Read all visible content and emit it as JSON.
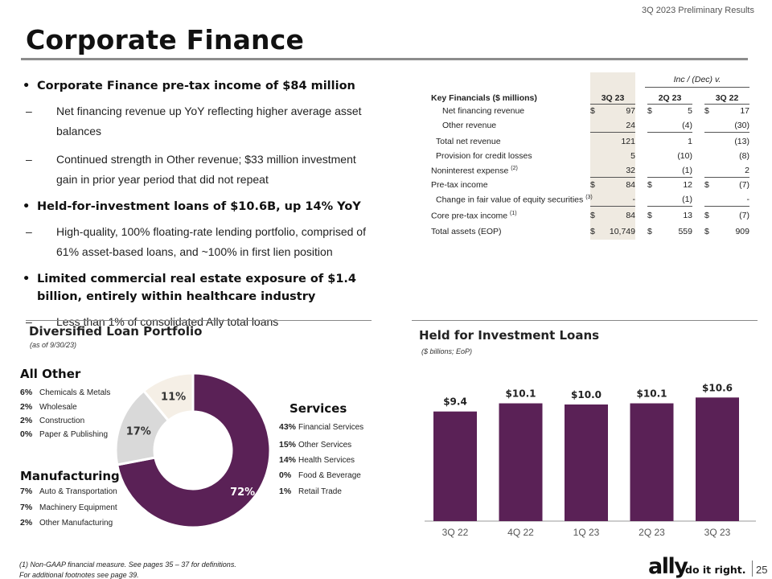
{
  "header": {
    "top_label": "3Q 2023 Preliminary Results",
    "title": "Corporate Finance"
  },
  "bullets": [
    {
      "text": "Corporate Finance pre-tax income of $84 million",
      "subs": [
        "Net financing revenue up YoY reflecting higher average asset balances",
        "Continued strength in Other revenue; $33 million investment gain in prior year period that did not repeat"
      ]
    },
    {
      "text": "Held-for-investment loans of $10.6B, up 14% YoY",
      "subs": [
        "High-quality, 100% floating-rate lending portfolio, comprised of 61% asset-based loans, and ~100% in first lien position"
      ]
    },
    {
      "text": "Limited commercial real estate exposure of $1.4 billion, entirely within healthcare industry",
      "subs": [
        "Less than 1% of consolidated Ally total loans"
      ]
    }
  ],
  "table": {
    "inc_header": "Inc / (Dec) v.",
    "label_header": "Key Financials ($ millions)",
    "columns": [
      "3Q 23",
      "2Q 23",
      "3Q 22"
    ],
    "rows": [
      {
        "label": "Net financing revenue",
        "sup": "",
        "values": [
          "97",
          "5",
          "17"
        ],
        "dollar": true
      },
      {
        "label": "Other revenue",
        "sup": "",
        "values": [
          "24",
          "(4)",
          "(30)"
        ],
        "dollar": false
      },
      {
        "label": "Total net revenue",
        "sup": "",
        "values": [
          "121",
          "1",
          "(13)"
        ],
        "dollar": false
      },
      {
        "label": "Provision for credit losses",
        "sup": "",
        "values": [
          "5",
          "(10)",
          "(8)"
        ],
        "dollar": false
      },
      {
        "label": "Noninterest expense",
        "sup": "(2)",
        "values": [
          "32",
          "(1)",
          "2"
        ],
        "dollar": false
      },
      {
        "label": "Pre-tax income",
        "sup": "",
        "values": [
          "84",
          "12",
          "(7)"
        ],
        "dollar": true
      },
      {
        "label": "Change in fair value of equity securities",
        "sup": "(3)",
        "values": [
          "-",
          "(1)",
          "-"
        ],
        "dollar": false
      },
      {
        "label": "Core pre-tax income",
        "sup": "(1)",
        "values": [
          "84",
          "13",
          "(7)"
        ],
        "dollar": true
      },
      {
        "label": "Total assets (EOP)",
        "sup": "",
        "values": [
          "10,749",
          "559",
          "909"
        ],
        "dollar": true
      }
    ]
  },
  "portfolio": {
    "title": "Diversified Loan Portfolio",
    "subtitle": "(as of 9/30/23)",
    "groups": {
      "all_other": {
        "title": "All Other",
        "items": [
          {
            "pct": "6%",
            "label": "Chemicals & Metals"
          },
          {
            "pct": "2%",
            "label": "Wholesale"
          },
          {
            "pct": "2%",
            "label": "Construction"
          },
          {
            "pct": "0%",
            "label": "Paper & Publishing"
          }
        ]
      },
      "manufacturing": {
        "title": "Manufacturing",
        "items": [
          {
            "pct": "7%",
            "label": "Auto & Transportation"
          },
          {
            "pct": "7%",
            "label": "Machinery Equipment"
          },
          {
            "pct": "2%",
            "label": "Other Manufacturing"
          }
        ]
      },
      "services": {
        "title": "Services",
        "items": [
          {
            "pct": "43%",
            "label": "Financial Services"
          },
          {
            "pct": "15%",
            "label": "Other Services"
          },
          {
            "pct": "14%",
            "label": "Health Services"
          },
          {
            "pct": "0%",
            "label": "Food & Beverage"
          },
          {
            "pct": "1%",
            "label": "Retail Trade"
          }
        ]
      }
    }
  },
  "hfi": {
    "title": "Held for Investment Loans",
    "subtitle": "($ billions; EoP)"
  },
  "chart_data": [
    {
      "type": "pie",
      "title": "Diversified Loan Portfolio",
      "labels": [
        "Services",
        "Manufacturing",
        "All Other"
      ],
      "values": [
        72,
        17,
        11
      ],
      "value_labels": [
        "72%",
        "17%",
        "11%"
      ],
      "colors": [
        "#5a2156",
        "#d9d9d9",
        "#f5efe6"
      ]
    },
    {
      "type": "bar",
      "title": "Held for Investment Loans",
      "categories": [
        "3Q 22",
        "4Q 22",
        "1Q 23",
        "2Q 23",
        "3Q 23"
      ],
      "values": [
        9.4,
        10.1,
        10.0,
        10.1,
        10.6
      ],
      "value_labels": [
        "$9.4",
        "$10.1",
        "$10.0",
        "$10.1",
        "$10.6"
      ],
      "color": "#5a2156",
      "xlabel": "",
      "ylabel": ""
    }
  ],
  "footer": {
    "note1": "(1)     Non-GAAP financial measure. See pages 35 – 37 for definitions.",
    "note2": "For additional footnotes see page 39.",
    "logo": "ally",
    "tagline": "do it right.",
    "page_number": "25"
  }
}
